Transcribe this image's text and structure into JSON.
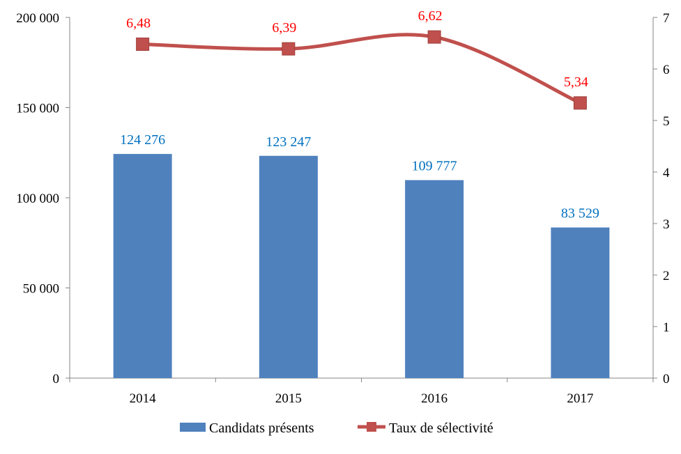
{
  "chart_data": {
    "type": "bar+line",
    "categories": [
      "2014",
      "2015",
      "2016",
      "2017"
    ],
    "series": [
      {
        "name": "Candidats présents",
        "type": "bar",
        "axis": "left",
        "values": [
          124276,
          123247,
          109777,
          83529
        ],
        "labels": [
          "124 276",
          "123 247",
          "109 777",
          "83 529"
        ],
        "color": "#4F81BD",
        "label_color": "#0070C0"
      },
      {
        "name": "Taux de sélectivité",
        "type": "line",
        "axis": "right",
        "smooth": true,
        "marker": "square",
        "values": [
          6.48,
          6.39,
          6.62,
          5.34
        ],
        "labels": [
          "6,48",
          "6,39",
          "6,62",
          "5,34"
        ],
        "color": "#C0504D",
        "label_color": "#FF0000"
      }
    ],
    "y_left": {
      "lim": [
        0,
        200000
      ],
      "ticks": [
        0,
        50000,
        100000,
        150000,
        200000
      ],
      "tick_labels": [
        "0",
        "50 000",
        "100 000",
        "150 000",
        "200 000"
      ]
    },
    "y_right": {
      "lim": [
        0,
        7
      ],
      "ticks": [
        0,
        1,
        2,
        3,
        4,
        5,
        6,
        7
      ],
      "tick_labels": [
        "0",
        "1",
        "2",
        "3",
        "4",
        "5",
        "6",
        "7"
      ]
    },
    "grid": false,
    "legend": "bottom"
  }
}
